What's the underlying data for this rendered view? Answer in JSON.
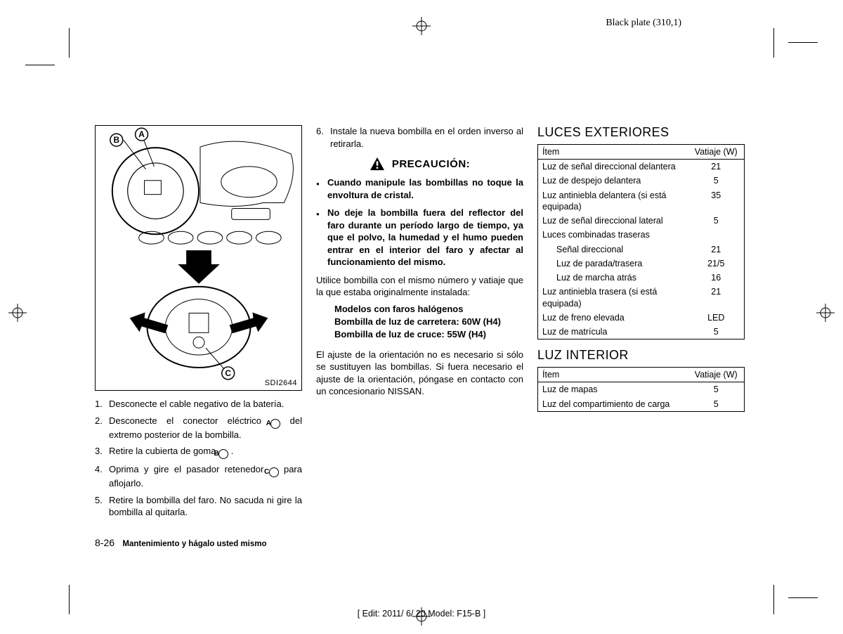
{
  "print": {
    "plate_label": "Black plate (310,1)",
    "edit_line": "[ Edit: 2011/ 6/ 20    Model: F15-B ]"
  },
  "figure": {
    "caption": "SDI2644",
    "labels": {
      "A": "A",
      "B": "B",
      "C": "C"
    }
  },
  "steps": [
    "Desconecte el cable negativo de la batería.",
    "Desconecte el conector eléctrico |A| del extremo posterior de la bombilla.",
    "Retire la cubierta de goma |B| .",
    "Oprima y gire el pasador retenedor |C| para aflojarlo.",
    "Retire la bombilla del faro. No sacuda ni gire la bombilla al quitarla.",
    "Instale la nueva bombilla en el orden inverso al retirarla."
  ],
  "caution": {
    "title": "PRECAUCIÓN:",
    "items": [
      "Cuando manipule las bombillas no toque la envoltura de cristal.",
      "No deje la bombilla fuera del reflector del faro durante un período largo de tiempo, ya que el polvo, la humedad y el humo pueden entrar en el interior del faro y afectar al funcionamiento del mismo."
    ]
  },
  "mid_para": "Utilice bombilla con el mismo número y vatiaje que la que estaba originalmente instalada:",
  "halogen": {
    "title": "Modelos con faros halógenos",
    "line1": "Bombilla de luz de carretera: 60W (H4)",
    "line2": "Bombilla de luz de cruce: 55W (H4)"
  },
  "final_para": "El ajuste de la orientación no es necesario si sólo se sustituyen las bombillas. Si fuera necesario el ajuste de la orientación, póngase en contacto con un concesionario NISSAN.",
  "exterior": {
    "title": "LUCES EXTERIORES",
    "header_item": "Ítem",
    "header_watt": "Vatiaje (W)",
    "rows": [
      {
        "label": "Luz de señal direccional delantera",
        "watt": "21",
        "indent": false
      },
      {
        "label": "Luz de despejo delantera",
        "watt": "5",
        "indent": false
      },
      {
        "label": "Luz antiniebla delantera (si está equipada)",
        "watt": "35",
        "indent": false
      },
      {
        "label": "Luz de señal direccional lateral",
        "watt": "5",
        "indent": false
      },
      {
        "label": "Luces combinadas traseras",
        "watt": "",
        "indent": false
      },
      {
        "label": "Señal direccional",
        "watt": "21",
        "indent": true
      },
      {
        "label": "Luz de parada/trasera",
        "watt": "21/5",
        "indent": true
      },
      {
        "label": "Luz de marcha atrás",
        "watt": "16",
        "indent": true
      },
      {
        "label": "Luz antiniebla trasera (si está equipada)",
        "watt": "21",
        "indent": false
      },
      {
        "label": "Luz de freno elevada",
        "watt": "LED",
        "indent": false
      },
      {
        "label": "Luz de matrícula",
        "watt": "5",
        "indent": false
      }
    ]
  },
  "interior": {
    "title": "LUZ INTERIOR",
    "header_item": "Ítem",
    "header_watt": "Vatiaje (W)",
    "rows": [
      {
        "label": "Luz de mapas",
        "watt": "5",
        "indent": false
      },
      {
        "label": "Luz del compartimiento de carga",
        "watt": "5",
        "indent": false
      }
    ]
  },
  "footer": {
    "page_num": "8-26",
    "section": "Mantenimiento y hágalo usted mismo"
  }
}
